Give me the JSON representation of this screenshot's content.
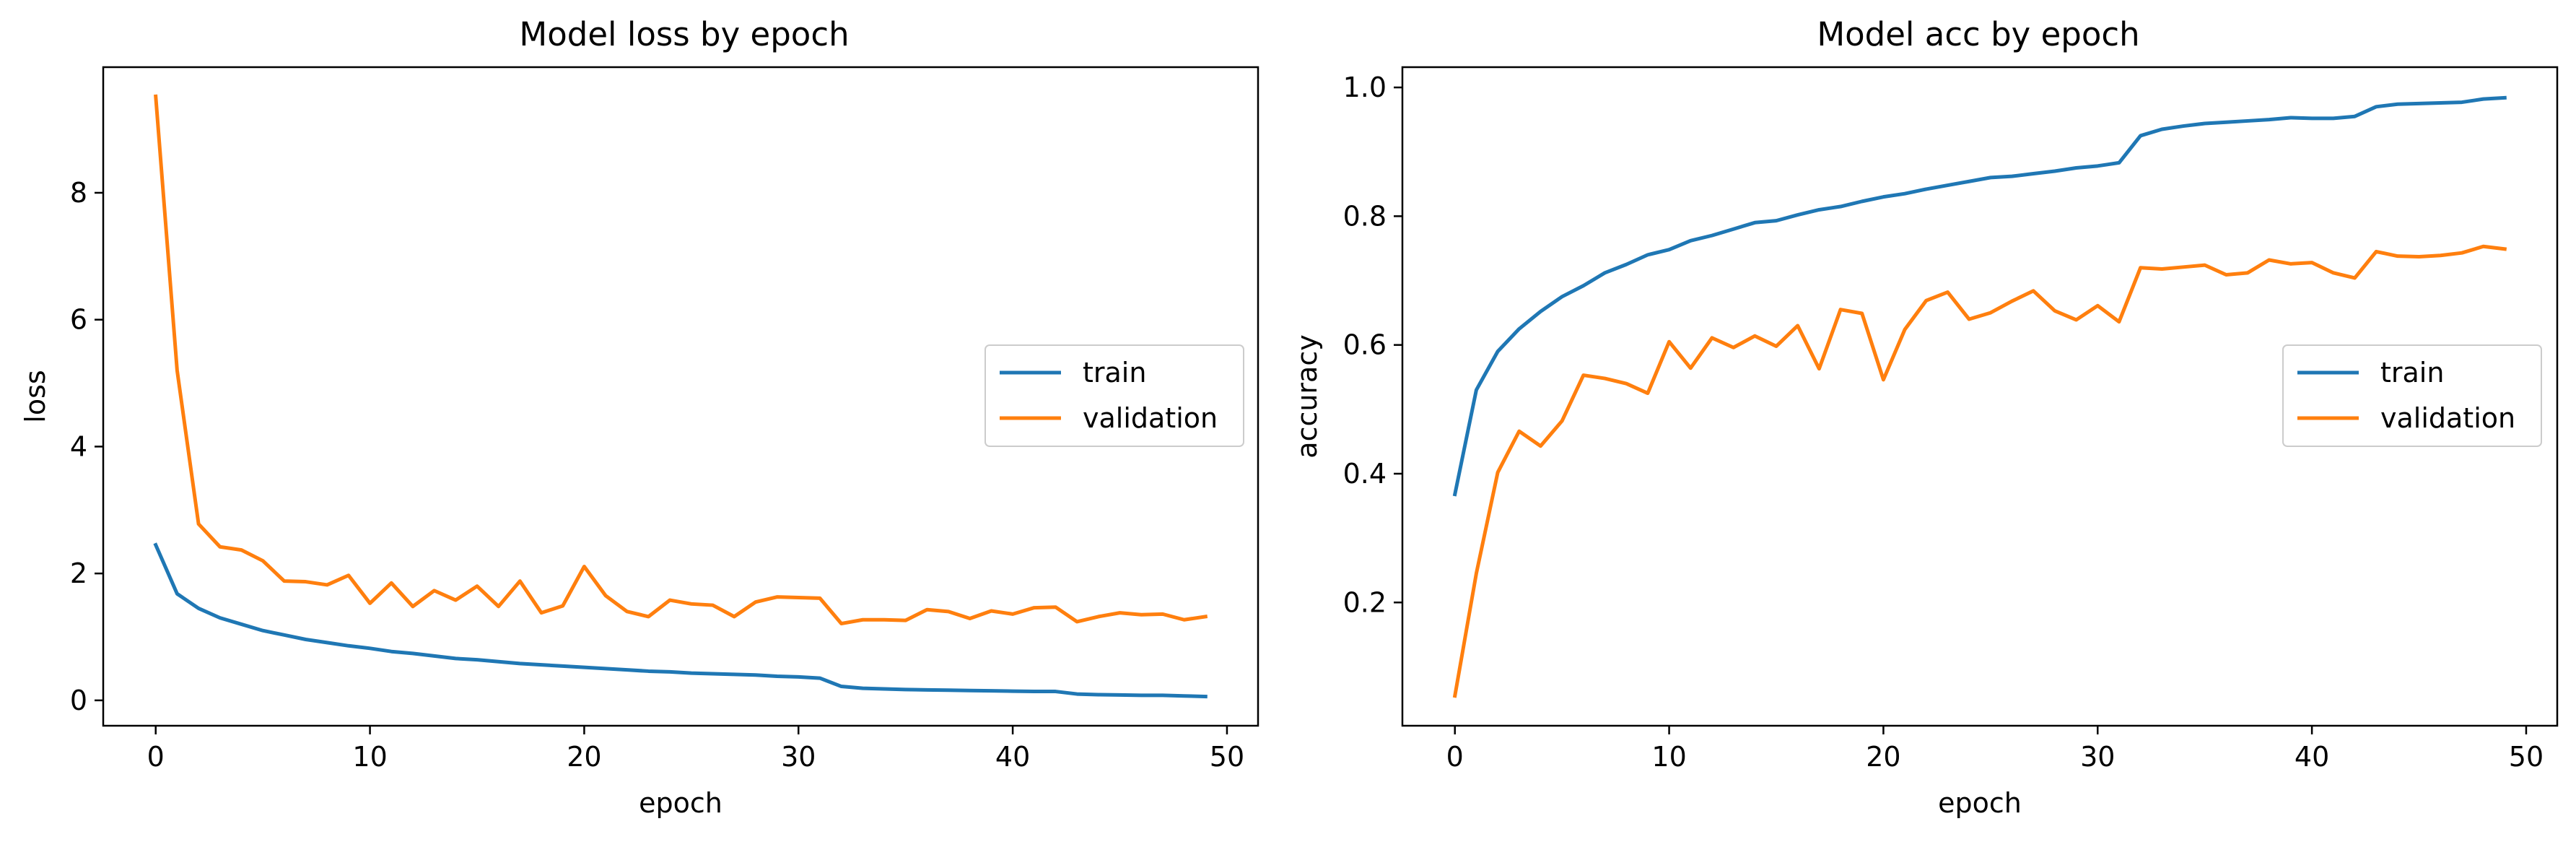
{
  "colors": {
    "train": "#1f77b4",
    "validation": "#ff7f0e",
    "axis": "#000000",
    "legend_border": "#cccccc"
  },
  "chart_data": [
    {
      "type": "line",
      "title": "Model loss by epoch",
      "xlabel": "epoch",
      "ylabel": "loss",
      "xlim": [
        -2.45,
        51.45
      ],
      "ylim": [
        -0.4,
        9.98
      ],
      "xticks": [
        0,
        10,
        20,
        30,
        40,
        50
      ],
      "yticks": [
        0,
        2,
        4,
        6,
        8
      ],
      "grid": false,
      "legend_position": "center-right",
      "series": [
        {
          "name": "train",
          "values": [
            2.45,
            1.68,
            1.45,
            1.3,
            1.2,
            1.1,
            1.03,
            0.96,
            0.91,
            0.86,
            0.82,
            0.77,
            0.74,
            0.7,
            0.66,
            0.64,
            0.61,
            0.58,
            0.56,
            0.54,
            0.52,
            0.5,
            0.48,
            0.46,
            0.45,
            0.43,
            0.42,
            0.41,
            0.4,
            0.38,
            0.37,
            0.35,
            0.22,
            0.19,
            0.18,
            0.17,
            0.165,
            0.16,
            0.155,
            0.15,
            0.145,
            0.14,
            0.14,
            0.1,
            0.09,
            0.085,
            0.08,
            0.08,
            0.07,
            0.06
          ]
        },
        {
          "name": "validation",
          "values": [
            9.52,
            5.2,
            2.78,
            2.42,
            2.37,
            2.2,
            1.88,
            1.87,
            1.82,
            1.97,
            1.53,
            1.85,
            1.48,
            1.73,
            1.58,
            1.8,
            1.48,
            1.88,
            1.38,
            1.49,
            2.11,
            1.65,
            1.4,
            1.32,
            1.58,
            1.52,
            1.5,
            1.32,
            1.55,
            1.63,
            1.62,
            1.61,
            1.21,
            1.27,
            1.27,
            1.26,
            1.43,
            1.4,
            1.29,
            1.41,
            1.36,
            1.46,
            1.47,
            1.24,
            1.32,
            1.38,
            1.35,
            1.36,
            1.27,
            1.32
          ]
        }
      ]
    },
    {
      "type": "line",
      "title": "Model acc by epoch",
      "xlabel": "epoch",
      "ylabel": "accuracy",
      "xlim": [
        -2.45,
        51.45
      ],
      "ylim": [
        0.0085,
        1.0315
      ],
      "xticks": [
        0,
        10,
        20,
        30,
        40,
        50
      ],
      "yticks": [
        0.2,
        0.4,
        0.6,
        0.8,
        1.0
      ],
      "grid": false,
      "legend_position": "center-right",
      "series": [
        {
          "name": "train",
          "values": [
            0.368,
            0.53,
            0.59,
            0.625,
            0.652,
            0.675,
            0.692,
            0.712,
            0.725,
            0.74,
            0.748,
            0.762,
            0.77,
            0.78,
            0.79,
            0.793,
            0.802,
            0.81,
            0.815,
            0.823,
            0.83,
            0.835,
            0.842,
            0.848,
            0.854,
            0.86,
            0.862,
            0.866,
            0.87,
            0.875,
            0.878,
            0.883,
            0.925,
            0.935,
            0.94,
            0.944,
            0.946,
            0.948,
            0.95,
            0.953,
            0.952,
            0.952,
            0.955,
            0.97,
            0.974,
            0.975,
            0.976,
            0.977,
            0.982,
            0.984
          ]
        },
        {
          "name": "validation",
          "values": [
            0.055,
            0.245,
            0.402,
            0.466,
            0.443,
            0.482,
            0.553,
            0.548,
            0.54,
            0.525,
            0.605,
            0.564,
            0.611,
            0.596,
            0.614,
            0.598,
            0.63,
            0.563,
            0.655,
            0.649,
            0.546,
            0.624,
            0.669,
            0.682,
            0.64,
            0.65,
            0.668,
            0.684,
            0.653,
            0.639,
            0.661,
            0.636,
            0.72,
            0.718,
            0.721,
            0.724,
            0.709,
            0.712,
            0.732,
            0.726,
            0.728,
            0.712,
            0.704,
            0.745,
            0.738,
            0.737,
            0.739,
            0.743,
            0.753,
            0.749
          ]
        }
      ]
    }
  ]
}
